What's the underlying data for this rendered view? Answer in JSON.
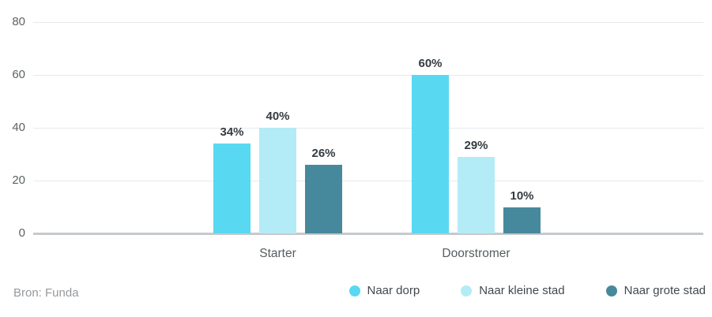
{
  "source": "Bron: Funda",
  "colors": {
    "series_naar_dorp": "#59d8f2",
    "series_naar_kleine_stad": "#b3ebf6",
    "series_naar_grote_stad": "#47899c",
    "gridline": "#e7e9ea",
    "zero_line": "#c6c9cb"
  },
  "chart_data": {
    "type": "bar",
    "title": "",
    "xlabel": "",
    "ylabel": "",
    "categories": [
      "Starter",
      "Doorstromer"
    ],
    "series": [
      {
        "name": "Naar dorp",
        "color": "#59d8f2",
        "values": [
          34,
          60
        ],
        "labels": [
          "34%",
          "60%"
        ]
      },
      {
        "name": "Naar kleine stad",
        "color": "#b3ebf6",
        "values": [
          40,
          29
        ],
        "labels": [
          "40%",
          "29%"
        ]
      },
      {
        "name": "Naar grote stad",
        "color": "#47899c",
        "values": [
          26,
          10
        ],
        "labels": [
          "26%",
          "10%"
        ]
      }
    ],
    "ylim": [
      0,
      80
    ],
    "yticks": [
      0,
      20,
      40,
      60,
      80
    ],
    "ytick_labels": [
      "0",
      "20",
      "40",
      "60",
      "80"
    ],
    "grid": true,
    "legend_position": "bottom-right",
    "value_suffix": "%"
  }
}
